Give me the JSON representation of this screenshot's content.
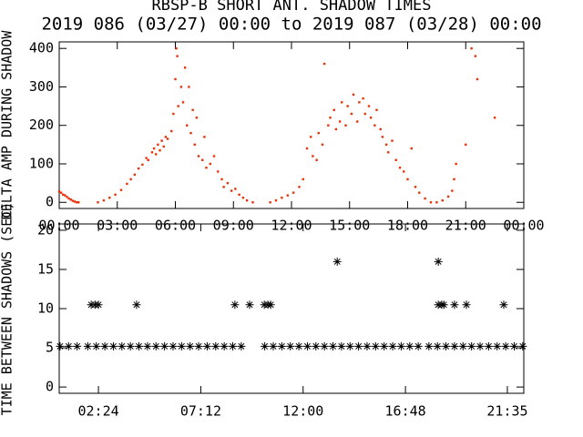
{
  "chart_data": [
    {
      "type": "scatter",
      "title": "RBSP-B SHORT ANT. SHADOW TIMES",
      "subtitle": "2019 086 (03/27) 00:00 to 2019 087 (03/28) 00:00",
      "ylabel": "DELTA AMP DURING SHADOW",
      "color": "#e8320a",
      "marker": "dot",
      "xlim": [
        0,
        24
      ],
      "ylim": [
        -16,
        417
      ],
      "xticks": [
        {
          "value": 0,
          "label": "00:00"
        },
        {
          "value": 3,
          "label": "03:00"
        },
        {
          "value": 6,
          "label": "06:00"
        },
        {
          "value": 9,
          "label": "09:00"
        },
        {
          "value": 12,
          "label": "12:00"
        },
        {
          "value": 15,
          "label": "15:00"
        },
        {
          "value": 18,
          "label": "18:00"
        },
        {
          "value": 21,
          "label": "21:00"
        },
        {
          "value": 24,
          "label": "00:00"
        }
      ],
      "yticks": [
        0,
        100,
        200,
        300,
        400
      ],
      "x": [
        0,
        0.1,
        0.2,
        0.3,
        0.4,
        0.5,
        0.6,
        0.7,
        0.8,
        0.9,
        1.0,
        2.0,
        2.3,
        2.6,
        2.9,
        3.2,
        3.5,
        3.7,
        3.9,
        4.1,
        4.3,
        4.5,
        4.6,
        4.8,
        4.9,
        5.0,
        5.1,
        5.2,
        5.3,
        5.4,
        5.5,
        5.6,
        5.8,
        5.9,
        6.0,
        6.05,
        6.1,
        6.15,
        6.3,
        6.4,
        6.5,
        6.6,
        6.7,
        6.8,
        6.9,
        7.0,
        7.1,
        7.2,
        7.4,
        7.5,
        7.6,
        7.8,
        8.0,
        8.2,
        8.4,
        8.5,
        8.7,
        8.9,
        9.1,
        9.3,
        9.5,
        9.7,
        10.0,
        10.9,
        11.2,
        11.5,
        11.8,
        12.1,
        12.4,
        12.6,
        12.8,
        13.0,
        13.1,
        13.3,
        13.4,
        13.6,
        13.7,
        13.9,
        14.0,
        14.2,
        14.3,
        14.5,
        14.6,
        14.8,
        14.9,
        15.1,
        15.2,
        15.4,
        15.5,
        15.7,
        15.8,
        16.0,
        16.1,
        16.3,
        16.4,
        16.6,
        16.7,
        16.9,
        17.0,
        17.2,
        17.4,
        17.6,
        17.8,
        18.0,
        18.2,
        18.4,
        18.6,
        18.9,
        19.2,
        19.5,
        19.8,
        20.1,
        20.3,
        20.4,
        20.5,
        21.0,
        21.3,
        21.5,
        21.6,
        22.5
      ],
      "values": [
        28,
        25,
        20,
        18,
        14,
        10,
        7,
        4,
        2,
        0,
        0,
        0,
        5,
        12,
        20,
        32,
        48,
        60,
        72,
        88,
        98,
        115,
        110,
        130,
        140,
        125,
        150,
        135,
        160,
        145,
        170,
        165,
        185,
        230,
        320,
        400,
        380,
        250,
        300,
        260,
        350,
        200,
        300,
        180,
        240,
        150,
        220,
        120,
        110,
        170,
        90,
        100,
        120,
        80,
        60,
        40,
        50,
        30,
        35,
        20,
        12,
        5,
        0,
        0,
        5,
        12,
        18,
        25,
        40,
        60,
        140,
        170,
        120,
        110,
        180,
        150,
        360,
        200,
        220,
        240,
        190,
        210,
        260,
        200,
        250,
        230,
        280,
        210,
        260,
        270,
        230,
        250,
        220,
        200,
        240,
        190,
        170,
        150,
        130,
        160,
        110,
        90,
        80,
        60,
        140,
        40,
        25,
        10,
        0,
        0,
        5,
        15,
        30,
        60,
        100,
        150,
        400,
        380,
        320,
        220
      ]
    },
    {
      "type": "scatter",
      "ylabel": "TIME BETWEEN SHADOWS (SEC)",
      "color": "#000000",
      "marker": "asterisk",
      "xlim": [
        0.56,
        22.35
      ],
      "ylim": [
        -0.8,
        20.8
      ],
      "xticks": [
        {
          "value": 2.4,
          "label": "02:24"
        },
        {
          "value": 7.2,
          "label": "07:12"
        },
        {
          "value": 12,
          "label": "12:00"
        },
        {
          "value": 16.8,
          "label": "16:48"
        },
        {
          "value": 21.58,
          "label": "21:35"
        }
      ],
      "yticks": [
        0,
        5,
        10,
        15,
        20
      ],
      "x": [
        0.6,
        1.0,
        1.4,
        1.9,
        2.3,
        2.7,
        3.1,
        3.5,
        3.9,
        4.3,
        4.7,
        5.1,
        5.5,
        5.9,
        6.3,
        6.7,
        7.1,
        7.5,
        7.9,
        8.3,
        8.7,
        9.1,
        10.2,
        10.6,
        11,
        11.4,
        11.8,
        12.2,
        12.6,
        13,
        13.4,
        13.8,
        14.2,
        14.6,
        15,
        15.4,
        15.8,
        16.2,
        16.6,
        17,
        17.4,
        17.9,
        18.3,
        18.7,
        19.1,
        19.5,
        19.9,
        20.3,
        20.7,
        21.1,
        21.5,
        21.9,
        22.3,
        2.06,
        2.24,
        2.4,
        4.19,
        8.8,
        9.49,
        10.18,
        10.35,
        10.48,
        18.34,
        18.5,
        18.6,
        19.1,
        19.66,
        21.41,
        13.6,
        18.34
      ],
      "values": [
        5.2,
        5.2,
        5.2,
        5.2,
        5.2,
        5.2,
        5.2,
        5.2,
        5.2,
        5.2,
        5.2,
        5.2,
        5.2,
        5.2,
        5.2,
        5.2,
        5.2,
        5.2,
        5.2,
        5.2,
        5.2,
        5.2,
        5.2,
        5.2,
        5.2,
        5.2,
        5.2,
        5.2,
        5.2,
        5.2,
        5.2,
        5.2,
        5.2,
        5.2,
        5.2,
        5.2,
        5.2,
        5.2,
        5.2,
        5.2,
        5.2,
        5.2,
        5.2,
        5.2,
        5.2,
        5.2,
        5.2,
        5.2,
        5.2,
        5.2,
        5.2,
        5.2,
        5.2,
        10.5,
        10.5,
        10.5,
        10.5,
        10.5,
        10.5,
        10.5,
        10.5,
        10.5,
        10.5,
        10.5,
        10.5,
        10.5,
        10.5,
        10.5,
        16,
        16
      ]
    }
  ]
}
